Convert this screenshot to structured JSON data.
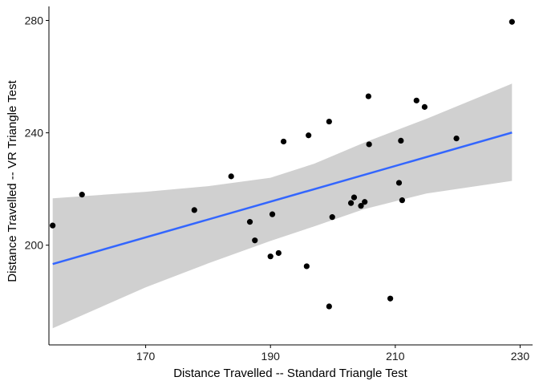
{
  "chart_data": {
    "type": "scatter",
    "xlabel": "Distance Travelled -- Standard Triangle Test",
    "ylabel": "Distance Travelled -- VR Triangle Test",
    "xlim": [
      154.5,
      232
    ],
    "ylim": [
      164.5,
      285
    ],
    "xticks": [
      170,
      190,
      210,
      230
    ],
    "yticks": [
      200,
      240,
      280
    ],
    "grid": false,
    "legend": "none",
    "points": [
      {
        "x": 155.1,
        "y": 207.0
      },
      {
        "x": 159.8,
        "y": 218.0
      },
      {
        "x": 177.8,
        "y": 212.5
      },
      {
        "x": 183.7,
        "y": 224.5
      },
      {
        "x": 186.7,
        "y": 208.3
      },
      {
        "x": 187.5,
        "y": 201.7
      },
      {
        "x": 190.0,
        "y": 196.0
      },
      {
        "x": 190.3,
        "y": 211.0
      },
      {
        "x": 191.3,
        "y": 197.2
      },
      {
        "x": 192.1,
        "y": 236.9
      },
      {
        "x": 195.8,
        "y": 192.5
      },
      {
        "x": 196.1,
        "y": 239.1
      },
      {
        "x": 199.4,
        "y": 244.0
      },
      {
        "x": 199.4,
        "y": 178.2
      },
      {
        "x": 199.9,
        "y": 210.0
      },
      {
        "x": 202.9,
        "y": 215.0
      },
      {
        "x": 203.4,
        "y": 217.0
      },
      {
        "x": 204.5,
        "y": 214.0
      },
      {
        "x": 205.1,
        "y": 215.4
      },
      {
        "x": 205.7,
        "y": 253.0
      },
      {
        "x": 205.8,
        "y": 235.9
      },
      {
        "x": 209.2,
        "y": 181.0
      },
      {
        "x": 210.6,
        "y": 222.2
      },
      {
        "x": 210.9,
        "y": 237.2
      },
      {
        "x": 211.1,
        "y": 216.0
      },
      {
        "x": 213.4,
        "y": 251.5
      },
      {
        "x": 214.7,
        "y": 249.2
      },
      {
        "x": 219.8,
        "y": 238.0
      },
      {
        "x": 228.7,
        "y": 279.5
      }
    ],
    "fit_line": {
      "x": [
        155.1,
        228.7
      ],
      "y": [
        193.3,
        240.1
      ],
      "color": "#3366ff"
    },
    "confidence_band": {
      "color": "#d0d0d0",
      "x": [
        155.1,
        170,
        180,
        190,
        197,
        205,
        215,
        228.7
      ],
      "upper": [
        216.7,
        219.0,
        221.0,
        224.0,
        229.0,
        236.5,
        245.0,
        257.5
      ],
      "lower": [
        170.4,
        185.0,
        193.5,
        201.5,
        206.7,
        212.8,
        218.4,
        222.9
      ]
    },
    "colors": {
      "points": "#000000",
      "axis": "#000000"
    }
  }
}
